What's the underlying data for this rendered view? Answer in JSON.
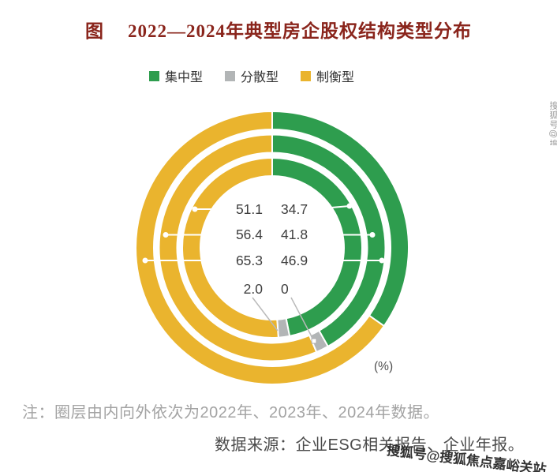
{
  "title": {
    "prefix": "图",
    "main": "2022—2024年典型房企股权结构类型分布"
  },
  "legend": {
    "items": [
      {
        "label": "集中型",
        "color": "#2e9d4e"
      },
      {
        "label": "分散型",
        "color": "#b2b5b6"
      },
      {
        "label": "制衡型",
        "color": "#eab42e"
      }
    ]
  },
  "chart_data": {
    "type": "pie",
    "subtype": "multi-ring-donut",
    "title": "2022—2024年典型房企股权结构类型分布",
    "unit": "(%)",
    "start_angle_deg": 0,
    "direction": "clockwise",
    "legend_position": "top",
    "rings": [
      {
        "year": "2022",
        "position": "inner",
        "segments": [
          {
            "name": "集中型",
            "value": 46.9,
            "color": "#2e9d4e"
          },
          {
            "name": "分散型",
            "value": 2.0,
            "color": "#b2b5b6"
          },
          {
            "name": "制衡型",
            "value": 51.1,
            "color": "#eab42e"
          }
        ]
      },
      {
        "year": "2023",
        "position": "middle",
        "segments": [
          {
            "name": "集中型",
            "value": 41.8,
            "color": "#2e9d4e"
          },
          {
            "name": "分散型",
            "value": 1.8,
            "color": "#b2b5b6"
          },
          {
            "name": "制衡型",
            "value": 56.4,
            "color": "#eab42e"
          }
        ]
      },
      {
        "year": "2024",
        "position": "outer",
        "segments": [
          {
            "name": "集中型",
            "value": 34.7,
            "color": "#2e9d4e"
          },
          {
            "name": "分散型",
            "value": 0,
            "color": "#b2b5b6"
          },
          {
            "name": "制衡型",
            "value": 65.3,
            "color": "#eab42e"
          }
        ]
      }
    ],
    "value_labels": {
      "left": [
        "51.1",
        "56.4",
        "65.3",
        "2.0"
      ],
      "right": [
        "34.7",
        "41.8",
        "46.9",
        "0"
      ]
    }
  },
  "notes": {
    "note": "注：圈层由内向外依次为2022年、2023年、2024年数据。",
    "source": "数据来源：企业ESG相关报告、企业年报。"
  },
  "watermark": {
    "bottom_right": "搜狐号@搜狐焦点嘉峪关站",
    "right_edge": "搜狐号@搜狐焦点嘉峪关站"
  }
}
